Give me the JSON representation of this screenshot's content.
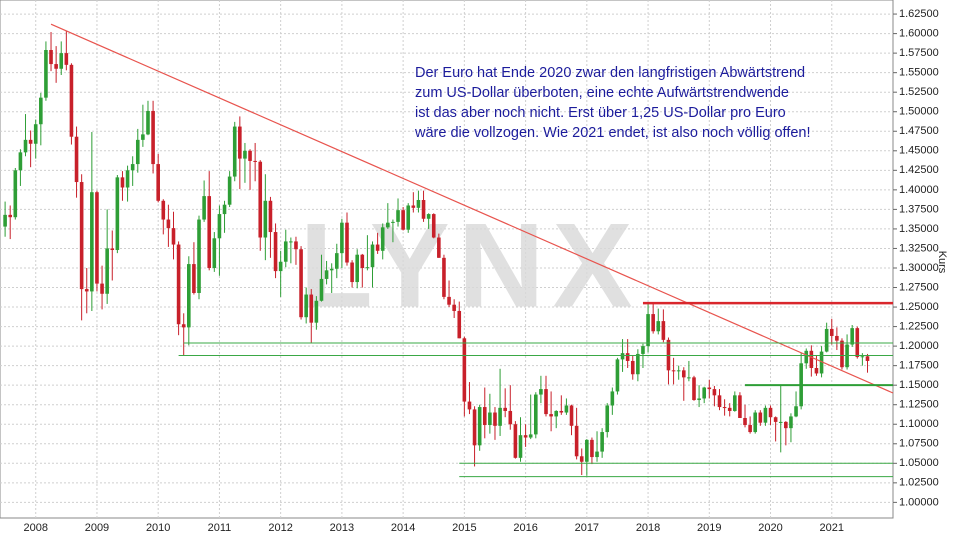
{
  "chart_data": {
    "type": "candlestick",
    "annotation": [
      "Der Euro hat Ende 2020 zwar den langfristigen Abwärtstrend",
      "zum US-Dollar überboten, eine echte Aufwärtstrendwende",
      "ist das aber noch nicht. Erst über 1,25 US-Dollar pro Euro",
      "wäre die vollzogen. Wie 2021 endet, ist also noch völlig offen!"
    ],
    "watermark": "LYNX",
    "y_label": "Kurs",
    "up_color": "#2e9e36",
    "down_color": "#c8202a",
    "categories": [
      null,
      null,
      null,
      null,
      null,
      null,
      "2008",
      null,
      null,
      null,
      null,
      null,
      null,
      null,
      null,
      null,
      null,
      null,
      "2009",
      null,
      null,
      null,
      null,
      null,
      null,
      null,
      null,
      null,
      null,
      null,
      "2010",
      null,
      null,
      null,
      null,
      null,
      null,
      null,
      null,
      null,
      null,
      null,
      "2011",
      null,
      null,
      null,
      null,
      null,
      null,
      null,
      null,
      null,
      null,
      null,
      "2012",
      null,
      null,
      null,
      null,
      null,
      null,
      null,
      null,
      null,
      null,
      null,
      "2013",
      null,
      null,
      null,
      null,
      null,
      null,
      null,
      null,
      null,
      null,
      null,
      "2014",
      null,
      null,
      null,
      null,
      null,
      null,
      null,
      null,
      null,
      null,
      null,
      "2015",
      null,
      null,
      null,
      null,
      null,
      null,
      null,
      null,
      null,
      null,
      null,
      "2016",
      null,
      null,
      null,
      null,
      null,
      null,
      null,
      null,
      null,
      null,
      null,
      "2017",
      null,
      null,
      null,
      null,
      null,
      null,
      null,
      null,
      null,
      null,
      null,
      "2018",
      null,
      null,
      null,
      null,
      null,
      null,
      null,
      null,
      null,
      null,
      null,
      "2019",
      null,
      null,
      null,
      null,
      null,
      null,
      null,
      null,
      null,
      null,
      null,
      "2020",
      null,
      null,
      null,
      null,
      null,
      null,
      null,
      null,
      null,
      null,
      null,
      "2021",
      null,
      null,
      null,
      null,
      null,
      null,
      null
    ],
    "open": [
      1.353,
      1.368,
      1.365,
      1.425,
      1.448,
      1.464,
      1.459,
      1.484,
      1.518,
      1.579,
      1.561,
      1.555,
      1.575,
      1.56,
      1.468,
      1.41,
      1.273,
      1.27,
      1.397,
      1.28,
      1.267,
      1.325,
      1.323,
      1.416,
      1.403,
      1.425,
      1.433,
      1.464,
      1.471,
      1.501,
      1.433,
      1.386,
      1.362,
      1.351,
      1.33,
      1.228,
      1.224,
      1.305,
      1.268,
      1.362,
      1.392,
      1.3,
      1.338,
      1.369,
      1.381,
      1.417,
      1.481,
      1.44,
      1.45,
      1.437,
      1.436,
      1.339,
      1.386,
      1.346,
      1.296,
      1.308,
      1.334,
      1.334,
      1.324,
      1.237,
      1.266,
      1.23,
      1.258,
      1.286,
      1.297,
      1.299,
      1.319,
      1.358,
      1.307,
      1.282,
      1.317,
      1.3,
      1.301,
      1.33,
      1.322,
      1.352,
      1.358,
      1.359,
      1.374,
      1.349,
      1.38,
      1.377,
      1.387,
      1.363,
      1.369,
      1.339,
      1.313,
      1.263,
      1.253,
      1.245,
      1.21,
      1.129,
      1.119,
      1.073,
      1.122,
      1.099,
      1.115,
      1.098,
      1.121,
      1.117,
      1.1,
      1.057,
      1.086,
      1.083,
      1.087,
      1.138,
      1.145,
      1.113,
      1.11,
      1.117,
      1.115,
      1.124,
      1.098,
      1.059,
      1.052,
      1.08,
      1.058,
      1.065,
      1.09,
      1.124,
      1.142,
      1.183,
      1.191,
      1.181,
      1.164,
      1.19,
      1.2,
      1.241,
      1.219,
      1.232,
      1.208,
      1.169,
      1.168,
      1.169,
      1.16,
      1.16,
      1.131,
      1.133,
      1.147,
      1.145,
      1.137,
      1.122,
      1.121,
      1.117,
      1.137,
      1.108,
      1.099,
      1.09,
      1.115,
      1.102,
      1.121,
      1.109,
      1.103,
      1.103,
      1.095,
      1.11,
      1.123,
      1.178,
      1.194,
      1.172,
      1.165,
      1.193,
      1.222,
      1.213,
      1.207,
      1.173,
      1.202,
      1.223,
      1.186,
      1.187
    ],
    "high": [
      1.385,
      1.38,
      1.428,
      1.452,
      1.497,
      1.476,
      1.49,
      1.524,
      1.59,
      1.602,
      1.584,
      1.59,
      1.604,
      1.562,
      1.481,
      1.42,
      1.3,
      1.474,
      1.399,
      1.303,
      1.375,
      1.348,
      1.419,
      1.424,
      1.431,
      1.443,
      1.478,
      1.509,
      1.514,
      1.514,
      1.446,
      1.388,
      1.381,
      1.372,
      1.334,
      1.242,
      1.315,
      1.333,
      1.367,
      1.412,
      1.424,
      1.346,
      1.38,
      1.386,
      1.424,
      1.487,
      1.494,
      1.46,
      1.452,
      1.46,
      1.438,
      1.42,
      1.391,
      1.357,
      1.322,
      1.349,
      1.339,
      1.34,
      1.328,
      1.275,
      1.273,
      1.264,
      1.317,
      1.309,
      1.306,
      1.331,
      1.363,
      1.371,
      1.31,
      1.324,
      1.318,
      1.342,
      1.334,
      1.345,
      1.357,
      1.383,
      1.362,
      1.389,
      1.378,
      1.383,
      1.397,
      1.399,
      1.399,
      1.37,
      1.37,
      1.344,
      1.317,
      1.284,
      1.26,
      1.257,
      1.212,
      1.154,
      1.123,
      1.125,
      1.147,
      1.139,
      1.122,
      1.171,
      1.146,
      1.15,
      1.104,
      1.109,
      1.1,
      1.138,
      1.141,
      1.162,
      1.162,
      1.142,
      1.118,
      1.137,
      1.133,
      1.125,
      1.121,
      1.069,
      1.081,
      1.083,
      1.091,
      1.095,
      1.127,
      1.147,
      1.185,
      1.209,
      1.209,
      1.188,
      1.196,
      1.203,
      1.254,
      1.256,
      1.248,
      1.247,
      1.211,
      1.185,
      1.175,
      1.173,
      1.181,
      1.162,
      1.15,
      1.148,
      1.157,
      1.149,
      1.145,
      1.132,
      1.127,
      1.142,
      1.141,
      1.125,
      1.11,
      1.118,
      1.118,
      1.124,
      1.124,
      1.11,
      1.149,
      1.104,
      1.114,
      1.142,
      1.191,
      1.197,
      1.201,
      1.188,
      1.2,
      1.23,
      1.235,
      1.224,
      1.21,
      1.215,
      1.227,
      1.225,
      1.191,
      1.19
    ],
    "low": [
      1.34,
      1.337,
      1.362,
      1.405,
      1.443,
      1.429,
      1.44,
      1.457,
      1.514,
      1.552,
      1.537,
      1.547,
      1.553,
      1.458,
      1.39,
      1.233,
      1.242,
      1.245,
      1.27,
      1.247,
      1.254,
      1.284,
      1.319,
      1.386,
      1.385,
      1.405,
      1.422,
      1.455,
      1.47,
      1.421,
      1.384,
      1.343,
      1.327,
      1.311,
      1.214,
      1.188,
      1.201,
      1.266,
      1.26,
      1.359,
      1.297,
      1.295,
      1.29,
      1.345,
      1.378,
      1.411,
      1.401,
      1.409,
      1.4,
      1.411,
      1.322,
      1.31,
      1.313,
      1.287,
      1.263,
      1.301,
      1.306,
      1.304,
      1.234,
      1.229,
      1.204,
      1.221,
      1.257,
      1.279,
      1.268,
      1.287,
      1.3,
      1.303,
      1.275,
      1.274,
      1.275,
      1.297,
      1.275,
      1.318,
      1.311,
      1.35,
      1.333,
      1.353,
      1.348,
      1.345,
      1.371,
      1.371,
      1.359,
      1.35,
      1.338,
      1.313,
      1.26,
      1.25,
      1.236,
      1.21,
      1.11,
      1.113,
      1.046,
      1.066,
      1.082,
      1.088,
      1.08,
      1.085,
      1.109,
      1.093,
      1.056,
      1.052,
      1.071,
      1.081,
      1.082,
      1.127,
      1.11,
      1.091,
      1.095,
      1.112,
      1.112,
      1.086,
      1.055,
      1.035,
      1.034,
      1.049,
      1.052,
      1.057,
      1.083,
      1.112,
      1.138,
      1.167,
      1.172,
      1.157,
      1.155,
      1.172,
      1.192,
      1.216,
      1.215,
      1.205,
      1.151,
      1.151,
      1.157,
      1.13,
      1.155,
      1.13,
      1.122,
      1.127,
      1.133,
      1.123,
      1.118,
      1.111,
      1.11,
      1.116,
      1.108,
      1.096,
      1.088,
      1.088,
      1.098,
      1.098,
      1.099,
      1.078,
      1.064,
      1.073,
      1.077,
      1.109,
      1.119,
      1.171,
      1.161,
      1.162,
      1.16,
      1.192,
      1.202,
      1.195,
      1.17,
      1.17,
      1.199,
      1.184,
      1.175,
      1.166
    ],
    "close": [
      1.368,
      1.365,
      1.425,
      1.448,
      1.464,
      1.459,
      1.484,
      1.518,
      1.579,
      1.561,
      1.555,
      1.575,
      1.56,
      1.468,
      1.41,
      1.273,
      1.27,
      1.397,
      1.28,
      1.267,
      1.325,
      1.323,
      1.416,
      1.403,
      1.425,
      1.433,
      1.464,
      1.471,
      1.501,
      1.433,
      1.386,
      1.362,
      1.351,
      1.33,
      1.228,
      1.224,
      1.305,
      1.268,
      1.362,
      1.392,
      1.3,
      1.338,
      1.369,
      1.381,
      1.417,
      1.481,
      1.44,
      1.45,
      1.437,
      1.436,
      1.339,
      1.386,
      1.346,
      1.296,
      1.308,
      1.334,
      1.334,
      1.324,
      1.237,
      1.266,
      1.23,
      1.258,
      1.286,
      1.297,
      1.299,
      1.319,
      1.358,
      1.307,
      1.282,
      1.317,
      1.3,
      1.301,
      1.33,
      1.322,
      1.352,
      1.358,
      1.359,
      1.374,
      1.349,
      1.38,
      1.377,
      1.387,
      1.363,
      1.369,
      1.339,
      1.313,
      1.263,
      1.253,
      1.245,
      1.21,
      1.129,
      1.119,
      1.073,
      1.122,
      1.099,
      1.115,
      1.098,
      1.121,
      1.117,
      1.1,
      1.057,
      1.086,
      1.083,
      1.087,
      1.138,
      1.145,
      1.113,
      1.11,
      1.117,
      1.115,
      1.124,
      1.098,
      1.059,
      1.052,
      1.08,
      1.058,
      1.065,
      1.09,
      1.124,
      1.142,
      1.183,
      1.191,
      1.181,
      1.164,
      1.19,
      1.2,
      1.241,
      1.219,
      1.232,
      1.208,
      1.169,
      1.168,
      1.169,
      1.16,
      1.16,
      1.131,
      1.133,
      1.147,
      1.145,
      1.137,
      1.122,
      1.121,
      1.117,
      1.137,
      1.108,
      1.099,
      1.09,
      1.115,
      1.102,
      1.121,
      1.109,
      1.103,
      1.103,
      1.095,
      1.11,
      1.123,
      1.178,
      1.194,
      1.172,
      1.165,
      1.193,
      1.222,
      1.213,
      1.207,
      1.173,
      1.202,
      1.223,
      1.186,
      1.187,
      1.181
    ],
    "lines": [
      {
        "from": [
          9,
          1.612
        ],
        "to": [
          174,
          1.14
        ],
        "color": "#e8544e",
        "width": 1.2
      },
      {
        "from": [
          125,
          1.255
        ],
        "to": [
          174,
          1.255
        ],
        "color": "#d9262c",
        "width": 2.5
      },
      {
        "from": [
          35,
          1.204
        ],
        "to": [
          174,
          1.204
        ],
        "color": "#3aa845",
        "width": 1
      },
      {
        "from": [
          34,
          1.188
        ],
        "to": [
          174,
          1.188
        ],
        "color": "#3aa845",
        "width": 1
      },
      {
        "from": [
          145,
          1.15
        ],
        "to": [
          174,
          1.15
        ],
        "color": "#2e9e36",
        "width": 2
      },
      {
        "from": [
          89,
          1.05
        ],
        "to": [
          174,
          1.05
        ],
        "color": "#3aa845",
        "width": 1
      },
      {
        "from": [
          89,
          1.033
        ],
        "to": [
          174,
          1.033
        ],
        "color": "#3aa845",
        "width": 1
      }
    ],
    "xlim": [
      -1,
      174
    ],
    "ylim": [
      0.98,
      1.643
    ],
    "yticks": [
      {
        "value": 1.0,
        "label": "1.00000"
      },
      {
        "value": 1.025,
        "label": "1.02500"
      },
      {
        "value": 1.05,
        "label": "1.05000"
      },
      {
        "value": 1.075,
        "label": "1.07500"
      },
      {
        "value": 1.1,
        "label": "1.10000"
      },
      {
        "value": 1.125,
        "label": "1.12500"
      },
      {
        "value": 1.15,
        "label": "1.15000"
      },
      {
        "value": 1.175,
        "label": "1.17500"
      },
      {
        "value": 1.2,
        "label": "1.20000"
      },
      {
        "value": 1.225,
        "label": "1.22500"
      },
      {
        "value": 1.25,
        "label": "1.25000"
      },
      {
        "value": 1.275,
        "label": "1.27500"
      },
      {
        "value": 1.3,
        "label": "1.30000"
      },
      {
        "value": 1.325,
        "label": "1.32500"
      },
      {
        "value": 1.35,
        "label": "1.35000"
      },
      {
        "value": 1.375,
        "label": "1.37500"
      },
      {
        "value": 1.4,
        "label": "1.40000"
      },
      {
        "value": 1.425,
        "label": "1.42500"
      },
      {
        "value": 1.45,
        "label": "1.45000"
      },
      {
        "value": 1.475,
        "label": "1.47500"
      },
      {
        "value": 1.5,
        "label": "1.50000"
      },
      {
        "value": 1.525,
        "label": "1.52500"
      },
      {
        "value": 1.55,
        "label": "1.55000"
      },
      {
        "value": 1.575,
        "label": "1.57500"
      },
      {
        "value": 1.6,
        "label": "1.60000"
      },
      {
        "value": 1.625,
        "label": "1.62500"
      }
    ],
    "grid": true
  }
}
